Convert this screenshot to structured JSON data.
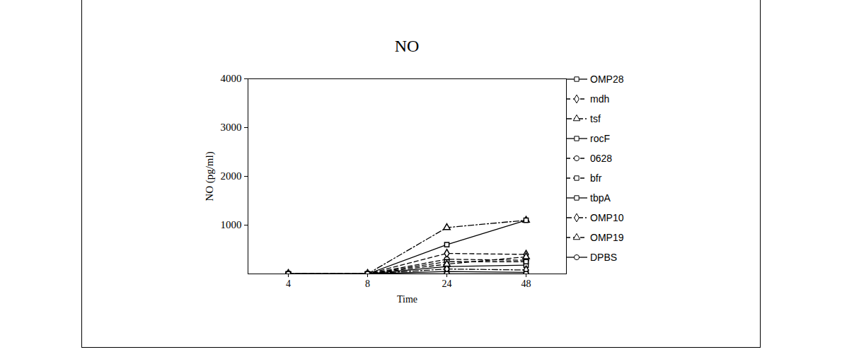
{
  "chart_data": {
    "type": "line",
    "title": "NO",
    "x_label": "Time",
    "y_label": "NO (pg/ml)",
    "categories": [
      "4",
      "8",
      "24",
      "48"
    ],
    "ylim": [
      0,
      4000
    ],
    "yticks": [
      1000,
      2000,
      3000,
      4000
    ],
    "grid": false,
    "legend": "right",
    "series": [
      {
        "name": "OMP28",
        "color": "#000000",
        "marker": "square",
        "line_style": "solid",
        "values": [
          0,
          0,
          150,
          180
        ]
      },
      {
        "name": "mdh",
        "color": "#000000",
        "marker": "diamond",
        "line_style": "dashed",
        "values": [
          0,
          0,
          420,
          400
        ]
      },
      {
        "name": "tsf",
        "color": "#000000",
        "marker": "triangle",
        "line_style": "dashdot",
        "values": [
          0,
          0,
          950,
          1100
        ]
      },
      {
        "name": "rocF",
        "color": "#000000",
        "marker": "square",
        "line_style": "solid",
        "values": [
          0,
          0,
          50,
          30
        ]
      },
      {
        "name": "0628",
        "color": "#000000",
        "marker": "circle",
        "line_style": "dashed",
        "values": [
          0,
          0,
          300,
          280
        ]
      },
      {
        "name": "bfr",
        "color": "#000000",
        "marker": "square",
        "line_style": "dashed",
        "values": [
          0,
          0,
          250,
          250
        ]
      },
      {
        "name": "tbpA",
        "color": "#000000",
        "marker": "square",
        "line_style": "solid",
        "values": [
          0,
          0,
          600,
          1100
        ]
      },
      {
        "name": "OMP10",
        "color": "#000000",
        "marker": "diamond",
        "line_style": "dashdot",
        "values": [
          0,
          0,
          100,
          80
        ]
      },
      {
        "name": "OMP19",
        "color": "#000000",
        "marker": "triangle",
        "line_style": "dashed",
        "values": [
          0,
          0,
          200,
          350
        ]
      },
      {
        "name": "DPBS",
        "color": "#000000",
        "marker": "circle",
        "line_style": "solid",
        "values": [
          0,
          0,
          0,
          0
        ]
      }
    ]
  }
}
